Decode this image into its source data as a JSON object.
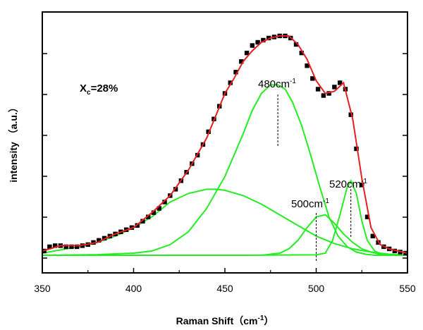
{
  "chart_data": {
    "type": "line",
    "xlabel": "Raman Shift（cm",
    "xlabel_sup": "-1",
    "xlabel_tail": "）",
    "ylabel": "intensity （a.u.）",
    "xlim": [
      350,
      550
    ],
    "ylim": [
      0,
      1.05
    ],
    "x_ticks": [
      "350",
      "400",
      "450",
      "500",
      "550"
    ],
    "x_tick_values": [
      350,
      400,
      450,
      500,
      550
    ],
    "grid": false,
    "annotations": [
      {
        "text": "X",
        "sub": "c",
        "tail": "=28%",
        "bold": true
      },
      {
        "text": "480cm",
        "sup": "-1",
        "x": 479
      },
      {
        "text": "520cm",
        "sup": "-1",
        "x": 519
      },
      {
        "text": "500cm",
        "sup": "-1",
        "x": 500
      }
    ],
    "series": [
      {
        "role": "measured",
        "marker": "square",
        "color": "#000000",
        "x": [
          351,
          354,
          357,
          360,
          363,
          366,
          369,
          372,
          375,
          378,
          381,
          384,
          387,
          390,
          393,
          396,
          399,
          402,
          405,
          408,
          411,
          414,
          417,
          420,
          423,
          426,
          429,
          432,
          435,
          438,
          441,
          444,
          447,
          450,
          453,
          456,
          459,
          462,
          465,
          468,
          471,
          474,
          477,
          480,
          483,
          486,
          489,
          492,
          495,
          498,
          501,
          504,
          507,
          510,
          513,
          516,
          519,
          522,
          525,
          528,
          531,
          534,
          537,
          540,
          543,
          546,
          549
        ],
        "y": [
          0.02,
          0.04,
          0.045,
          0.045,
          0.04,
          0.04,
          0.04,
          0.045,
          0.05,
          0.06,
          0.07,
          0.08,
          0.09,
          0.1,
          0.11,
          0.12,
          0.13,
          0.14,
          0.16,
          0.18,
          0.2,
          0.22,
          0.25,
          0.28,
          0.31,
          0.35,
          0.39,
          0.43,
          0.47,
          0.52,
          0.58,
          0.64,
          0.7,
          0.76,
          0.81,
          0.86,
          0.91,
          0.95,
          0.985,
          1.0,
          1.01,
          1.02,
          1.025,
          1.03,
          1.03,
          1.02,
          0.99,
          0.95,
          0.89,
          0.83,
          0.78,
          0.75,
          0.76,
          0.79,
          0.81,
          0.78,
          0.66,
          0.5,
          0.33,
          0.18,
          0.09,
          0.06,
          0.04,
          0.03,
          0.02,
          0.015,
          0.01
        ]
      },
      {
        "role": "fit",
        "color": "#e52020",
        "x": [
          350,
          360,
          370,
          380,
          390,
          400,
          410,
          420,
          430,
          440,
          450,
          455,
          460,
          465,
          470,
          475,
          480,
          485,
          490,
          495,
          500,
          505,
          510,
          515,
          520,
          525,
          530,
          535,
          540,
          545,
          550
        ],
        "y": [
          0.02,
          0.045,
          0.045,
          0.06,
          0.1,
          0.13,
          0.2,
          0.28,
          0.4,
          0.55,
          0.76,
          0.83,
          0.91,
          0.96,
          1.0,
          1.02,
          1.03,
          1.03,
          0.99,
          0.92,
          0.82,
          0.76,
          0.77,
          0.81,
          0.64,
          0.36,
          0.13,
          0.05,
          0.03,
          0.02,
          0.01
        ]
      },
      {
        "role": "component-amorphous",
        "color": "#22ee22",
        "x": [
          350,
          360,
          370,
          380,
          390,
          400,
          410,
          420,
          430,
          440,
          445,
          450,
          460,
          470,
          480,
          490,
          500,
          510,
          520,
          530,
          540,
          550
        ],
        "y": [
          0.01,
          0.025,
          0.04,
          0.06,
          0.09,
          0.13,
          0.18,
          0.25,
          0.29,
          0.31,
          0.31,
          0.305,
          0.28,
          0.24,
          0.19,
          0.14,
          0.09,
          0.055,
          0.03,
          0.015,
          0.005,
          0.0
        ]
      },
      {
        "role": "component-480",
        "color": "#22ee22",
        "x": [
          350,
          380,
          400,
          410,
          420,
          430,
          440,
          450,
          460,
          465,
          470,
          475,
          479,
          483,
          487,
          492,
          497,
          502,
          507,
          512,
          517,
          522,
          527,
          532,
          540,
          550
        ],
        "y": [
          0.0,
          0.003,
          0.01,
          0.02,
          0.05,
          0.11,
          0.22,
          0.37,
          0.57,
          0.68,
          0.76,
          0.8,
          0.8,
          0.78,
          0.72,
          0.61,
          0.47,
          0.32,
          0.18,
          0.09,
          0.04,
          0.015,
          0.005,
          0.0,
          0.0,
          0.0
        ]
      },
      {
        "role": "component-500",
        "color": "#22ee22",
        "x": [
          470,
          480,
          485,
          490,
          495,
          500,
          505,
          510,
          515,
          520,
          525,
          530,
          535,
          540,
          550
        ],
        "y": [
          0.0,
          0.01,
          0.03,
          0.07,
          0.13,
          0.18,
          0.19,
          0.15,
          0.1,
          0.06,
          0.03,
          0.015,
          0.005,
          0.0,
          0.0
        ]
      },
      {
        "role": "component-520",
        "color": "#22ee22",
        "x": [
          350,
          460,
          500,
          505,
          509,
          513,
          517,
          519,
          522,
          525,
          528,
          532,
          536,
          540,
          550
        ],
        "y": [
          0.0,
          0.0,
          0.002,
          0.01,
          0.07,
          0.19,
          0.32,
          0.35,
          0.29,
          0.16,
          0.07,
          0.02,
          0.005,
          0.0,
          0.0
        ]
      }
    ]
  }
}
